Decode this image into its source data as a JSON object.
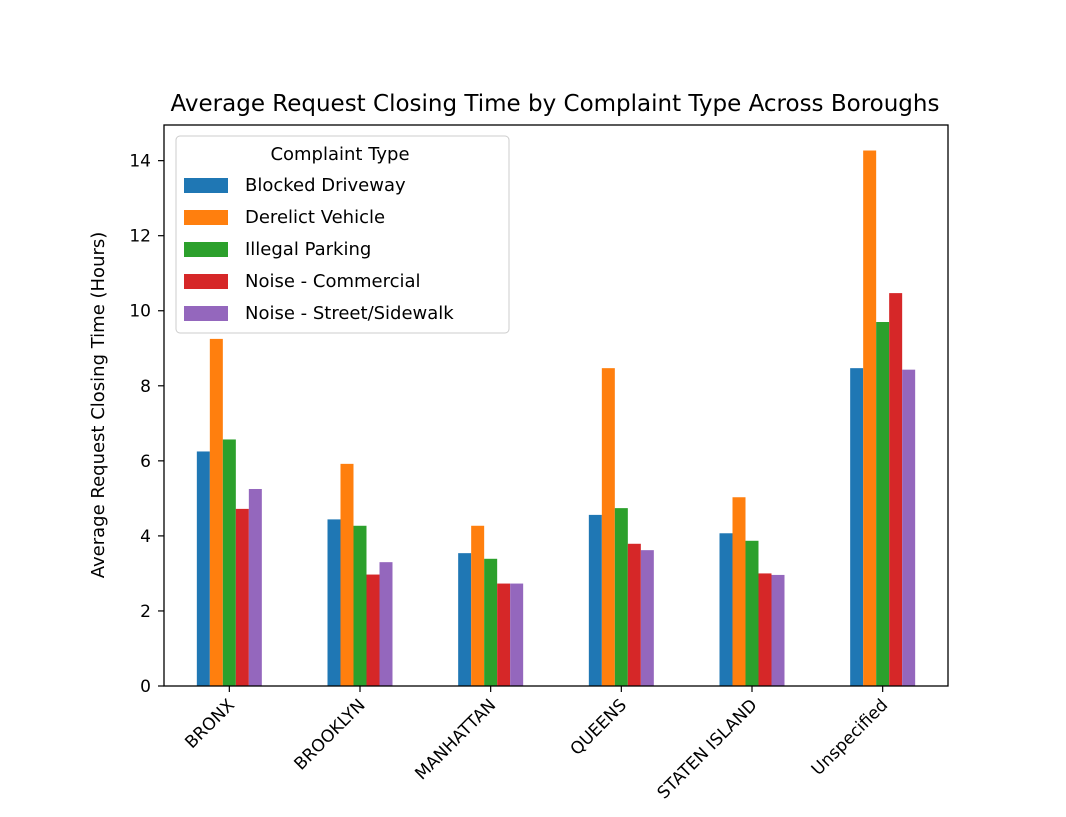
{
  "chart_data": {
    "type": "bar",
    "title": "Average Request Closing Time by Complaint Type Across Boroughs",
    "xlabel": "",
    "ylabel": "Average Request Closing Time (Hours)",
    "ylim": [
      0,
      14.95
    ],
    "yticks": [
      0,
      2,
      4,
      6,
      8,
      10,
      12,
      14
    ],
    "ytick_labels": [
      "0",
      "2",
      "4",
      "6",
      "8",
      "10",
      "12",
      "14"
    ],
    "categories": [
      "BRONX",
      "BROOKLYN",
      "MANHATTAN",
      "QUEENS",
      "STATEN ISLAND",
      "Unspecified"
    ],
    "grid": false,
    "legend": {
      "title": "Complaint Type",
      "placement": "upper-left"
    },
    "series": [
      {
        "name": "Blocked Driveway",
        "color": "#1f77b4",
        "values": [
          6.25,
          4.44,
          3.54,
          4.56,
          4.07,
          8.47
        ]
      },
      {
        "name": "Derelict Vehicle",
        "color": "#ff7f0e",
        "values": [
          9.25,
          5.92,
          4.27,
          8.47,
          5.03,
          14.27
        ]
      },
      {
        "name": "Illegal Parking",
        "color": "#2ca02c",
        "values": [
          6.57,
          4.27,
          3.39,
          4.74,
          3.87,
          9.7
        ]
      },
      {
        "name": "Noise - Commercial",
        "color": "#d62728",
        "values": [
          4.72,
          2.97,
          2.73,
          3.79,
          3.0,
          10.47
        ]
      },
      {
        "name": "Noise - Street/Sidewalk",
        "color": "#9467bd",
        "values": [
          5.25,
          3.3,
          2.73,
          3.62,
          2.96,
          8.43
        ]
      }
    ]
  }
}
